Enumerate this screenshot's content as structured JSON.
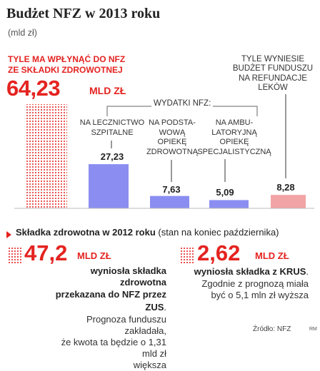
{
  "title": "Budżet NFZ w 2013 roku",
  "subtitle": "(mld zł)",
  "total": {
    "label_line1": "TYLE MA WPŁYNĄĆ DO NFZ",
    "label_line2": "ZE SKŁADKI ZDROWOTNEJ",
    "value": "64,23",
    "unit": "MLD ZŁ"
  },
  "refund": {
    "line1": "TYLE WYNIESIE",
    "line2": "BUDŻET FUNDUSZU",
    "line3": "NA REFUNDACJE",
    "line4": "LEKÓW"
  },
  "expenses_label": "WYDATKI NFZ:",
  "categories": {
    "hospital": [
      "NA LECZNICTWO",
      "SZPITALNE"
    ],
    "primary": [
      "NA PODSTA-",
      "WOWĄ",
      "OPIEKĘ",
      "ZDROWOTNĄ"
    ],
    "specialist": [
      "NA AMBU-",
      "LATORYJNĄ",
      "OPIEKĘ",
      "SPECJALISTYCZNĄ"
    ]
  },
  "value_labels": {
    "hospital": "27,23",
    "primary": "7,63",
    "specialist": "5,09",
    "refund": "8,28"
  },
  "chart_data": {
    "type": "bar",
    "categories": [
      "Składka zdrowotna",
      "Lecznictwo szpitalne",
      "Podstawowa opieka zdrowotna",
      "Ambulatoryjna opieka specjalistyczna",
      "Refundacje leków"
    ],
    "values": [
      64.23,
      27.23,
      7.63,
      5.09,
      8.28
    ],
    "ylim": [
      0,
      64.23
    ],
    "colors": [
      "#e42320",
      "#8b8ef0",
      "#8b8ef0",
      "#8b8ef0",
      "#f2a3a4"
    ]
  },
  "section2": {
    "title_bold": "Składka zdrowotna w 2012 roku",
    "title_rest": " (stan na koniec października)"
  },
  "stat_zus": {
    "value": "47,2",
    "unit": "MLD ZŁ",
    "bold_line1": "wyniosła składka zdrowotna",
    "bold_line2": "przekazana do NFZ przez ZUS",
    "bold_end": ".",
    "text_line1": "Prognoza funduszu zakładała,",
    "text_line2": "że kwota ta będzie o 1,31 mld zł",
    "text_line3": "większa"
  },
  "stat_krus": {
    "value": "2,62",
    "unit": "MLD ZŁ",
    "bold_line1": "wyniosła składka z KRUS",
    "bold_end": ".",
    "text_line1": "Zgodnie z prognozą miała",
    "text_line2": "być o 5,1 mln zł wyższa"
  },
  "source": "Źródło: NFZ",
  "signature": "RM"
}
